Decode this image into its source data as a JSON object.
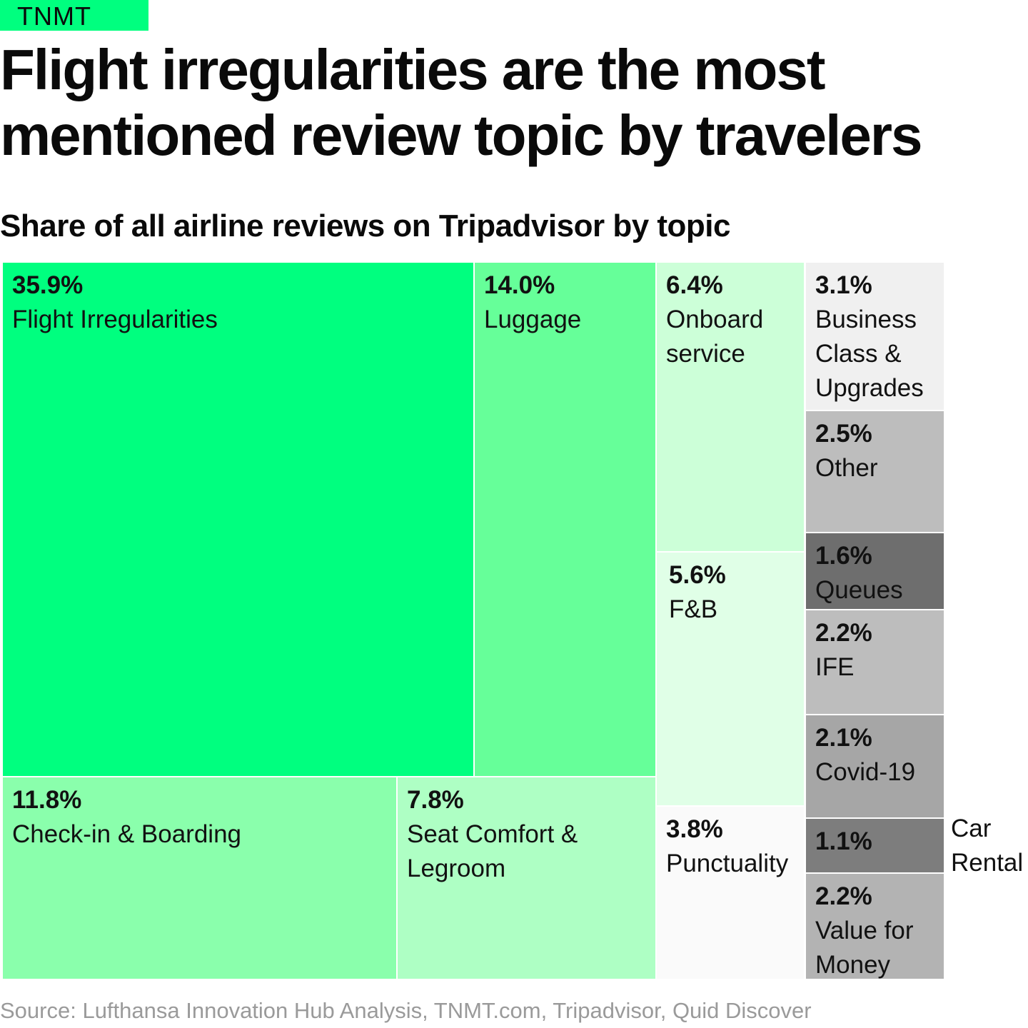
{
  "brand": {
    "logo_text": "TNMT",
    "accent_color": "#00ff7f"
  },
  "title": "Flight irregularities are the most mentioned review topic by travelers",
  "source": "Source: Lufthansa Innovation Hub Analysis, TNMT.com, Tripadvisor, Quid Discover",
  "chart_data": {
    "type": "treemap",
    "title": "Share of all airline reviews on Tripadvisor by topic",
    "unit": "%",
    "items": [
      {
        "id": "flight-irregularities",
        "label": "Flight Irregularities",
        "value": 35.9,
        "value_label": "35.9%",
        "color": "#00ff7f"
      },
      {
        "id": "luggage",
        "label": "Luggage",
        "value": 14.0,
        "value_label": "14.0%",
        "color": "#66ff99"
      },
      {
        "id": "check-in-boarding",
        "label": "Check-in & Boarding",
        "value": 11.8,
        "value_label": "11.8%",
        "color": "#8affac"
      },
      {
        "id": "seat-comfort-legroom",
        "label": "Seat Comfort & Legroom",
        "value": 7.8,
        "value_label": "7.8%",
        "color": "#aeffc4"
      },
      {
        "id": "onboard-service",
        "label": "Onboard service",
        "value": 6.4,
        "value_label": "6.4%",
        "color": "#ccffd8"
      },
      {
        "id": "fb",
        "label": "F&B",
        "value": 5.6,
        "value_label": "5.6%",
        "color": "#e0ffe7"
      },
      {
        "id": "punctuality",
        "label": "Punctuality",
        "value": 3.8,
        "value_label": "3.8%",
        "color": "#fafafa"
      },
      {
        "id": "business-class-upgrades",
        "label": "Business Class & Upgrades",
        "value": 3.1,
        "value_label": "3.1%",
        "color": "#f0f0f0"
      },
      {
        "id": "other",
        "label": "Other",
        "value": 2.5,
        "value_label": "2.5%",
        "color": "#bdbdbd"
      },
      {
        "id": "queues",
        "label": "Queues",
        "value": 1.6,
        "value_label": "1.6%",
        "color": "#6e6e6e"
      },
      {
        "id": "ife",
        "label": "IFE",
        "value": 2.2,
        "value_label": "2.2%",
        "color": "#bdbdbd"
      },
      {
        "id": "covid-19",
        "label": "Covid-19",
        "value": 2.1,
        "value_label": "2.1%",
        "color": "#a6a6a6"
      },
      {
        "id": "car-rental",
        "label": "Car Rental",
        "value": 1.1,
        "value_label": "1.1%",
        "color": "#7d7d7d"
      },
      {
        "id": "value-for-money",
        "label": "Value for Money",
        "value": 2.2,
        "value_label": "2.2%",
        "color": "#b3b3b3"
      }
    ]
  }
}
